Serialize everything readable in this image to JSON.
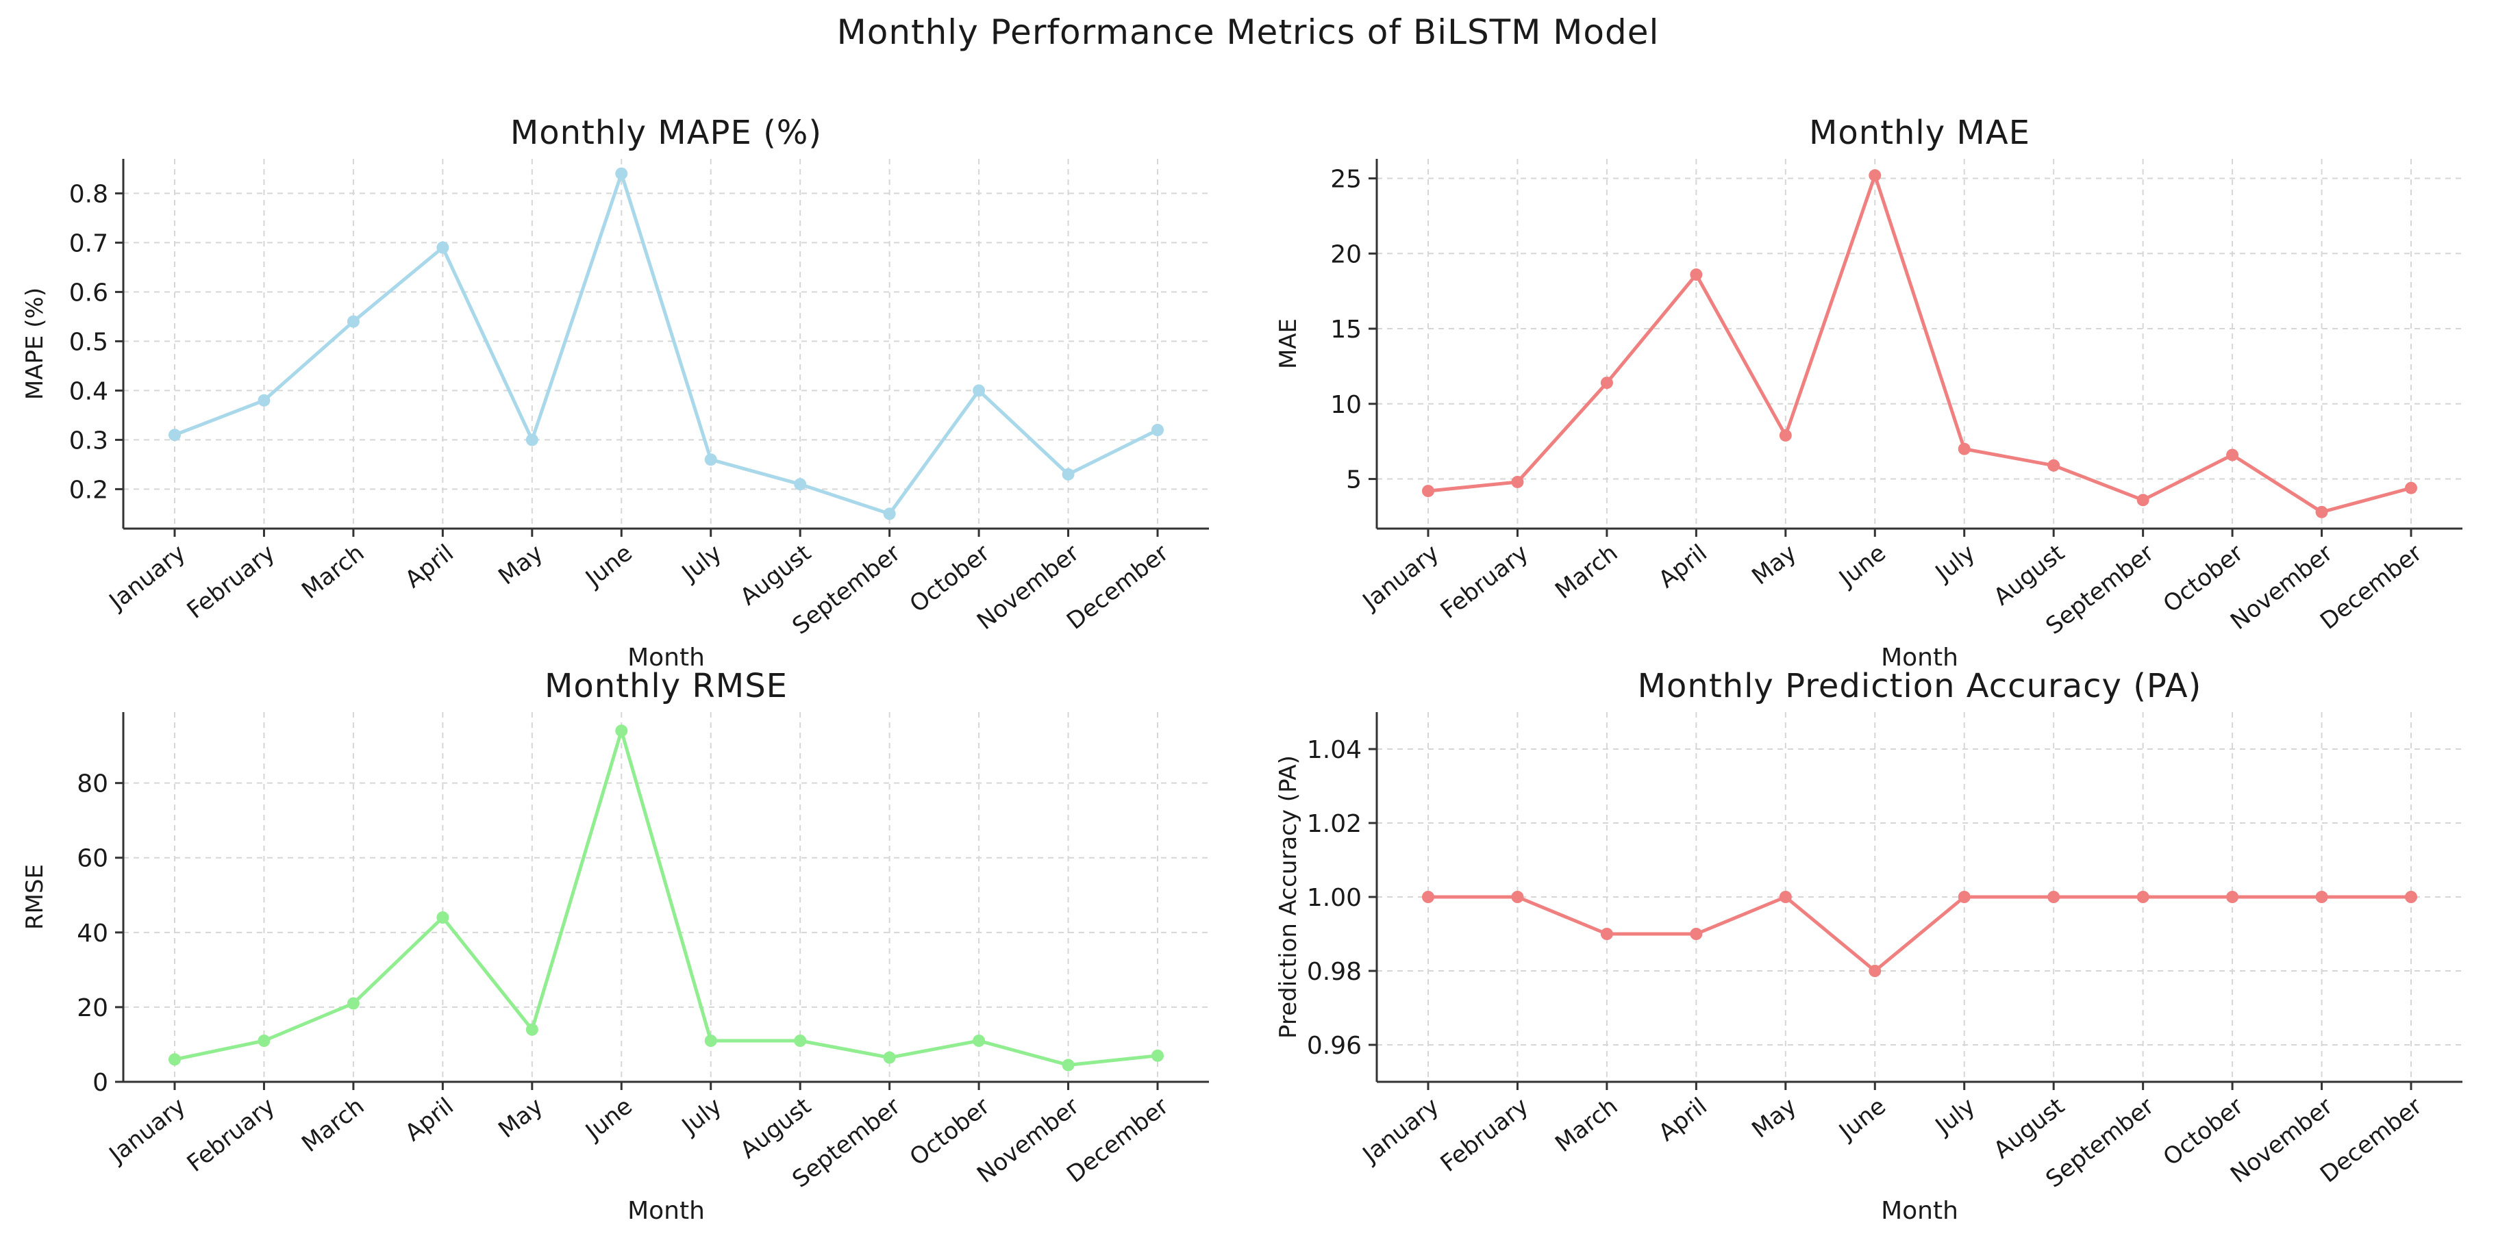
{
  "figure_title": "Monthly Performance Metrics of BiLSTM Model",
  "chart_data": [
    {
      "type": "line",
      "title": "Monthly MAPE (%)",
      "xlabel": "Month",
      "ylabel": "MAPE (%)",
      "color": "#a8d8ea",
      "categories": [
        "January",
        "February",
        "March",
        "April",
        "May",
        "June",
        "July",
        "August",
        "September",
        "October",
        "November",
        "December"
      ],
      "values": [
        0.31,
        0.38,
        0.54,
        0.69,
        0.3,
        0.84,
        0.26,
        0.21,
        0.15,
        0.4,
        0.23,
        0.32
      ],
      "ylim": [
        0.12,
        0.87
      ],
      "yticks": [
        0.2,
        0.3,
        0.4,
        0.5,
        0.6,
        0.7,
        0.8
      ],
      "ytick_labels": [
        "0.2",
        "0.3",
        "0.4",
        "0.5",
        "0.6",
        "0.7",
        "0.8"
      ],
      "grid": true
    },
    {
      "type": "line",
      "title": "Monthly MAE",
      "xlabel": "Month",
      "ylabel": "MAE",
      "color": "#f08080",
      "categories": [
        "January",
        "February",
        "March",
        "April",
        "May",
        "June",
        "July",
        "August",
        "September",
        "October",
        "November",
        "December"
      ],
      "values": [
        4.2,
        4.8,
        11.4,
        18.6,
        7.9,
        25.2,
        7.0,
        5.9,
        3.6,
        6.6,
        2.8,
        4.4
      ],
      "ylim": [
        1.7,
        26.3
      ],
      "yticks": [
        5,
        10,
        15,
        20,
        25
      ],
      "ytick_labels": [
        "5",
        "10",
        "15",
        "20",
        "25"
      ],
      "grid": true
    },
    {
      "type": "line",
      "title": "Monthly RMSE",
      "xlabel": "Month",
      "ylabel": "RMSE",
      "color": "#90ee90",
      "categories": [
        "January",
        "February",
        "March",
        "April",
        "May",
        "June",
        "July",
        "August",
        "September",
        "October",
        "November",
        "December"
      ],
      "values": [
        6,
        11,
        21,
        44,
        14,
        94,
        11,
        11,
        6.5,
        11,
        4.5,
        7
      ],
      "ylim": [
        0,
        99
      ],
      "yticks": [
        0,
        20,
        40,
        60,
        80
      ],
      "ytick_labels": [
        "0",
        "20",
        "40",
        "60",
        "80"
      ],
      "grid": true
    },
    {
      "type": "line",
      "title": "Monthly Prediction Accuracy (PA)",
      "xlabel": "Month",
      "ylabel": "Prediction Accuracy (PA)",
      "color": "#f08080",
      "categories": [
        "January",
        "February",
        "March",
        "April",
        "May",
        "June",
        "July",
        "August",
        "September",
        "October",
        "November",
        "December"
      ],
      "values": [
        1.0,
        1.0,
        0.99,
        0.99,
        1.0,
        0.98,
        1.0,
        1.0,
        1.0,
        1.0,
        1.0,
        1.0
      ],
      "ylim": [
        0.95,
        1.05
      ],
      "yticks": [
        0.96,
        0.98,
        1.0,
        1.02,
        1.04
      ],
      "ytick_labels": [
        "0.96",
        "0.98",
        "1.00",
        "1.02",
        "1.04"
      ],
      "grid": true
    }
  ]
}
